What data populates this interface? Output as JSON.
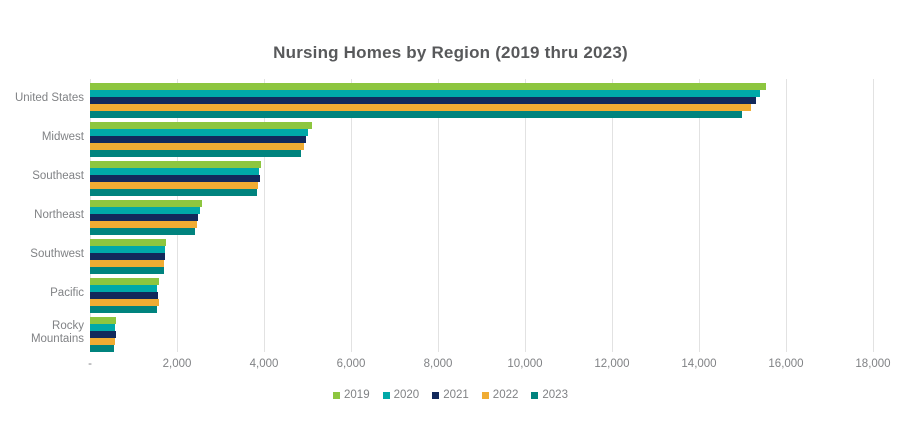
{
  "styles": {
    "title_color": "#58595B",
    "axis_label_color": "#808285",
    "grid_color": "#E2E2E2",
    "background": "#FFFFFF"
  },
  "chart_data": {
    "type": "bar",
    "orientation": "horizontal",
    "title": "Nursing Homes by Region (2019 thru 2023)",
    "categories": [
      "United States",
      "Midwest",
      "Southeast",
      "Northeast",
      "Southwest",
      "Pacific",
      "Rocky Mountains"
    ],
    "series": [
      {
        "name": "2019",
        "color": "#8DC63F",
        "values": [
          15550,
          5100,
          3920,
          2570,
          1740,
          1590,
          600
        ]
      },
      {
        "name": "2020",
        "color": "#00A9A8",
        "values": [
          15400,
          5020,
          3895,
          2530,
          1715,
          1540,
          575
        ]
      },
      {
        "name": "2021",
        "color": "#12295B",
        "values": [
          15310,
          4970,
          3915,
          2485,
          1730,
          1560,
          595
        ]
      },
      {
        "name": "2022",
        "color": "#F0AC33",
        "values": [
          15190,
          4910,
          3870,
          2460,
          1710,
          1580,
          575
        ]
      },
      {
        "name": "2023",
        "color": "#00837E",
        "values": [
          14980,
          4840,
          3840,
          2415,
          1690,
          1540,
          550
        ]
      }
    ],
    "x_axis": {
      "min": 0,
      "max": 18000,
      "tick_interval": 2000,
      "tick_labels": [
        "-",
        "2,000",
        "4,000",
        "6,000",
        "8,000",
        "10,000",
        "12,000",
        "14,000",
        "16,000",
        "18,000"
      ]
    },
    "ylabel": "",
    "xlabel": "",
    "grid": "vertical",
    "legend_position": "bottom"
  }
}
